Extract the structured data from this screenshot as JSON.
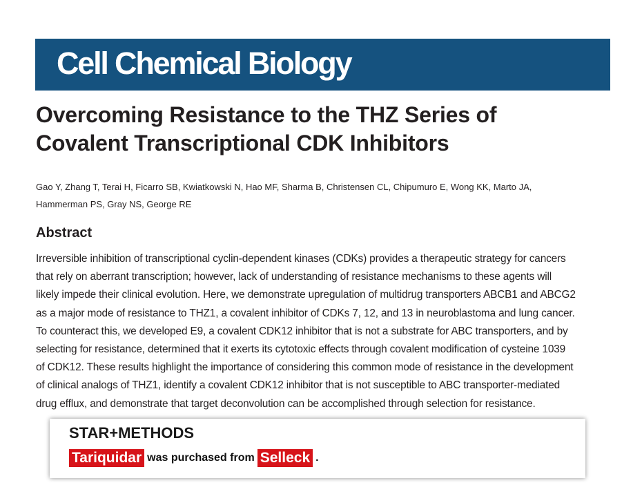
{
  "journal": {
    "name": "Cell Chemical Biology",
    "color": "#15527f"
  },
  "article": {
    "title_lines": [
      "Overcoming Resistance to the THZ Series of",
      "Covalent Transcriptional CDK Inhibitors"
    ],
    "author_lines": [
      "Gao Y, Zhang T, Terai H, Ficarro SB, Kwiatkowski N, Hao MF, Sharma B, Christensen CL, Chipumuro E, Wong KK, Marto JA,",
      "Hammerman PS, Gray NS, George RE"
    ],
    "abstract_heading": "Abstract",
    "abstract_lines": [
      "Irreversible inhibition of transcriptional cyclin-dependent kinases (CDKs) provides a therapeutic strategy for cancers",
      "that rely on aberrant transcription; however, lack of understanding of resistance mechanisms to these agents will",
      "likely impede their clinical evolution. Here, we demonstrate upregulation of multidrug transporters ABCB1 and ABCG2",
      "as a major mode of resistance to THZ1, a covalent inhibitor of CDKs 7, 12, and 13 in neuroblastoma and lung cancer.",
      "To counteract this, we developed E9, a covalent CDK12 inhibitor that is not a substrate for ABC transporters, and by",
      "selecting for resistance, determined that it exerts its cytotoxic effects through covalent modification of cysteine 1039",
      "of CDK12. These results highlight the importance of considering this common mode of resistance in the development",
      "of clinical analogs of THZ1, identify a covalent CDK12 inhibitor that is not susceptible to ABC transporter-mediated",
      "drug efflux, and demonstrate that target deconvolution can be accomplished through selection for resistance."
    ]
  },
  "callout": {
    "heading": "STAR+METHODS",
    "product": "Tariquidar",
    "middle": "was purchased from",
    "supplier": "Selleck",
    "end": ".",
    "highlight_color": "#d7141a"
  }
}
